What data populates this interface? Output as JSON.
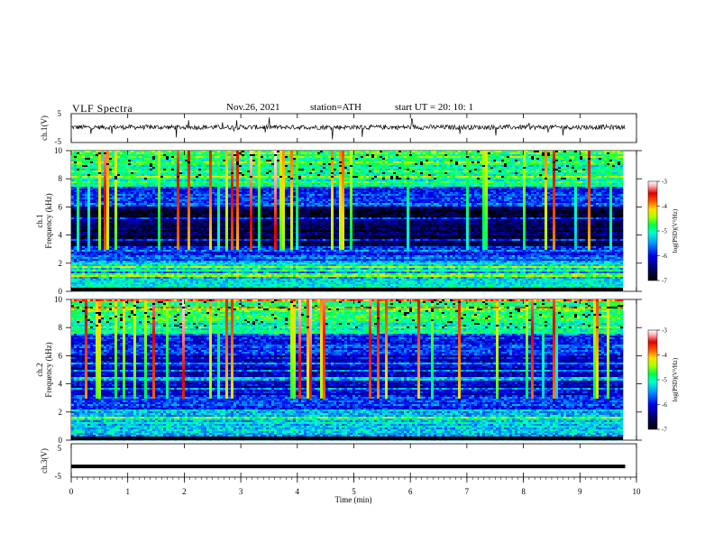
{
  "header": {
    "title": "VLF  Spectra",
    "date": "Nov.26, 2021",
    "station": "station=ATH",
    "start": "start  UT  =    20: 10: 1"
  },
  "chart_data": [
    {
      "type": "line",
      "name": "ch1-waveform",
      "ylabel": "ch.1(V)",
      "ylim": [
        -5,
        5
      ],
      "yticks": [
        "5",
        "-5"
      ],
      "xlim": [
        0,
        10
      ]
    },
    {
      "type": "heatmap",
      "name": "ch1-spectrogram",
      "ylabel": "Frequency  (kHz)",
      "ylabel_channel": "ch.1",
      "ylim": [
        0,
        10
      ],
      "yticks": [
        "0",
        "2",
        "4",
        "6",
        "8",
        "10"
      ],
      "xlim": [
        0,
        9.8
      ],
      "colorbar": {
        "label": "log(PSD)(V²/Hz)",
        "range": [
          -7,
          -3
        ],
        "ticks": [
          "-3",
          "-4",
          "-5",
          "-6",
          "-7"
        ]
      }
    },
    {
      "type": "heatmap",
      "name": "ch2-spectrogram",
      "ylabel": "Frequency  (kHz)",
      "ylabel_channel": "ch.2",
      "ylim": [
        0,
        10
      ],
      "yticks": [
        "0",
        "2",
        "4",
        "6",
        "8",
        "10"
      ],
      "xlim": [
        0,
        9.8
      ],
      "colorbar": {
        "label": "log(PSD)(V²/Hz)",
        "range": [
          -7,
          -3
        ],
        "ticks": [
          "-3",
          "-4",
          "-5",
          "-6",
          "-7"
        ]
      }
    },
    {
      "type": "line",
      "name": "ch3-waveform",
      "ylabel": "ch.3(V)",
      "ylim": [
        -5,
        5
      ],
      "yticks": [
        "5",
        "-5"
      ],
      "xlim": [
        0,
        10
      ],
      "level": -1.8
    }
  ],
  "xaxis": {
    "label": "Time  (min)",
    "ticks": [
      "0",
      "1",
      "2",
      "3",
      "4",
      "5",
      "6",
      "7",
      "8",
      "9",
      "10"
    ]
  },
  "colors": {
    "colormap": [
      "#000000",
      "#000044",
      "#0000cc",
      "#0066ff",
      "#00ccff",
      "#00ff88",
      "#88ff00",
      "#ffcc00",
      "#ff4400",
      "#cc0000",
      "#ffffff"
    ]
  }
}
